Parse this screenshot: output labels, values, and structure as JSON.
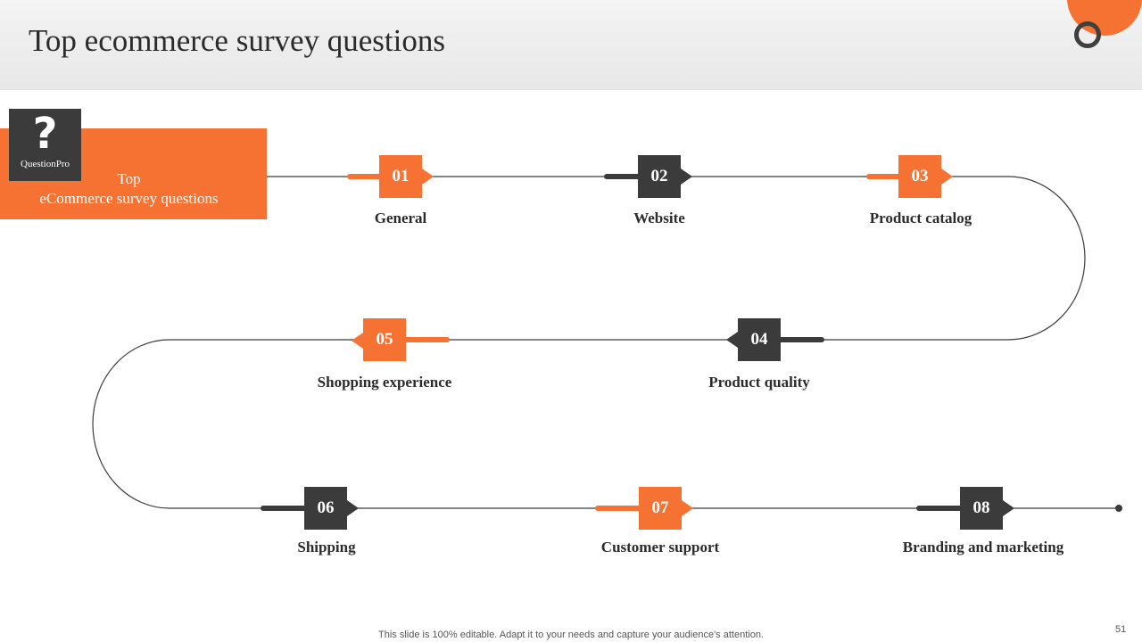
{
  "slide": {
    "title": "Top ecommerce survey questions",
    "intro_line1": "Top",
    "intro_line2": "eCommerce survey questions",
    "logo_symbol": "?",
    "logo_text": "QuestionPro",
    "footer": "This slide is 100% editable. Adapt it to your needs and capture your audience's attention.",
    "page_number": "51"
  },
  "colors": {
    "accent": "#f57232",
    "dark": "#3b3b3b"
  },
  "steps": [
    {
      "num": "01",
      "label": "General",
      "color": "orange"
    },
    {
      "num": "02",
      "label": "Website",
      "color": "dark"
    },
    {
      "num": "03",
      "label": "Product catalog",
      "color": "orange"
    },
    {
      "num": "04",
      "label": "Product quality",
      "color": "dark"
    },
    {
      "num": "05",
      "label": "Shopping experience",
      "color": "orange"
    },
    {
      "num": "06",
      "label": "Shipping",
      "color": "dark"
    },
    {
      "num": "07",
      "label": "Customer support",
      "color": "orange"
    },
    {
      "num": "08",
      "label": "Branding and marketing",
      "color": "dark"
    }
  ]
}
